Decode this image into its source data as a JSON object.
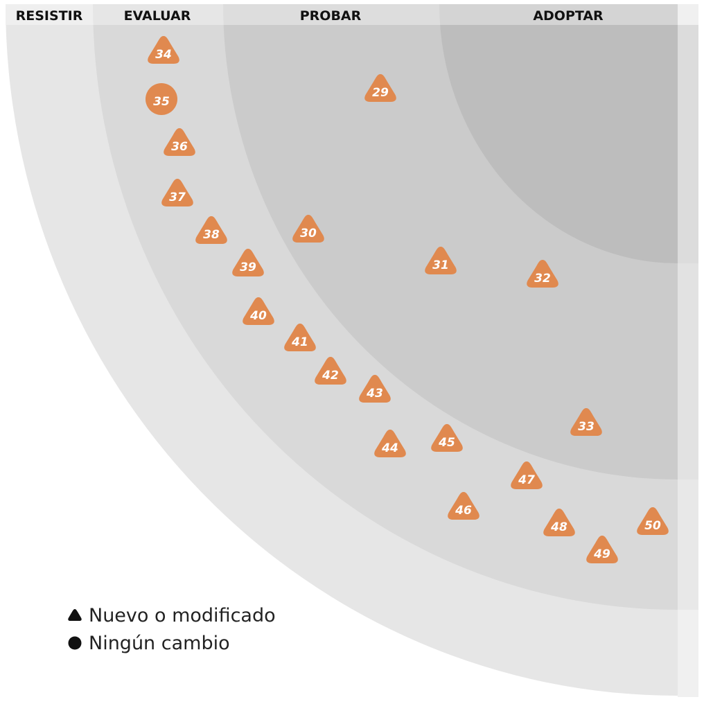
{
  "rings": [
    {
      "key": "resistir",
      "label": "RESISTIR"
    },
    {
      "key": "evaluar",
      "label": "EVALUAR"
    },
    {
      "key": "probar",
      "label": "PROBAR"
    },
    {
      "key": "adoptar",
      "label": "ADOPTAR"
    }
  ],
  "blip_color": "#E0894F",
  "blips": [
    {
      "id": "34",
      "shape": "triangle",
      "ring": "evaluar"
    },
    {
      "id": "35",
      "shape": "circle",
      "ring": "evaluar"
    },
    {
      "id": "36",
      "shape": "triangle",
      "ring": "evaluar"
    },
    {
      "id": "37",
      "shape": "triangle",
      "ring": "evaluar"
    },
    {
      "id": "38",
      "shape": "triangle",
      "ring": "evaluar"
    },
    {
      "id": "39",
      "shape": "triangle",
      "ring": "evaluar"
    },
    {
      "id": "40",
      "shape": "triangle",
      "ring": "evaluar"
    },
    {
      "id": "41",
      "shape": "triangle",
      "ring": "evaluar"
    },
    {
      "id": "42",
      "shape": "triangle",
      "ring": "evaluar"
    },
    {
      "id": "43",
      "shape": "triangle",
      "ring": "evaluar"
    },
    {
      "id": "44",
      "shape": "triangle",
      "ring": "evaluar"
    },
    {
      "id": "45",
      "shape": "triangle",
      "ring": "evaluar"
    },
    {
      "id": "46",
      "shape": "triangle",
      "ring": "evaluar"
    },
    {
      "id": "47",
      "shape": "triangle",
      "ring": "evaluar"
    },
    {
      "id": "48",
      "shape": "triangle",
      "ring": "evaluar"
    },
    {
      "id": "49",
      "shape": "triangle",
      "ring": "evaluar"
    },
    {
      "id": "50",
      "shape": "triangle",
      "ring": "evaluar"
    },
    {
      "id": "29",
      "shape": "triangle",
      "ring": "probar"
    },
    {
      "id": "30",
      "shape": "triangle",
      "ring": "probar"
    },
    {
      "id": "31",
      "shape": "triangle",
      "ring": "probar"
    },
    {
      "id": "32",
      "shape": "triangle",
      "ring": "probar"
    },
    {
      "id": "33",
      "shape": "triangle",
      "ring": "probar"
    }
  ],
  "legend": {
    "new_or_changed": {
      "label": "Nuevo o modificado",
      "icon": "triangle-icon"
    },
    "no_change": {
      "label": "Ningún cambio",
      "icon": "circle-icon"
    }
  }
}
